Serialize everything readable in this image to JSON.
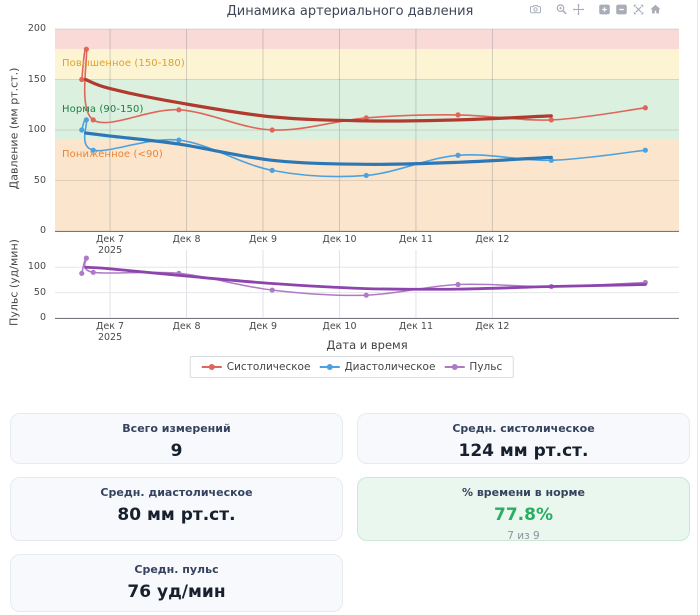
{
  "chart": {
    "title": "Динамика артериального давления",
    "modebar_icons": [
      "camera",
      "zoom",
      "pan",
      "zoom-in",
      "zoom-out",
      "autoscale",
      "home"
    ],
    "legend": [
      {
        "label": "Систолическое",
        "color": "#e0655b"
      },
      {
        "label": "Диастолическое",
        "color": "#4ea1dd"
      },
      {
        "label": "Пульс",
        "color": "#af7ac5"
      }
    ],
    "year_sublabel": "2025"
  },
  "chart_data": {
    "type": "line",
    "title": "Динамика артериального давления",
    "xlabel": "Дата и время",
    "x_unit": "day of December 2025 (decimal = time of day)",
    "xlim": [
      6.28,
      14.44
    ],
    "grid": true,
    "legend_position": "bottom-center",
    "xticks": [
      {
        "day": 7,
        "label": "Дек 7",
        "sublabel": "2025"
      },
      {
        "day": 8,
        "label": "Дек 8"
      },
      {
        "day": 9,
        "label": "Дек 9"
      },
      {
        "day": 10,
        "label": "Дек 10"
      },
      {
        "day": 11,
        "label": "Дек 11"
      },
      {
        "day": 12,
        "label": "Дек 12"
      }
    ],
    "subplots": [
      {
        "ylabel": "Давление (мм рт.ст.)",
        "ylim": [
          0,
          200
        ],
        "yticks": [
          0,
          50,
          100,
          150,
          200
        ],
        "zones": [
          {
            "from": 180,
            "to": 200,
            "fill": "#f9dad6",
            "label": "",
            "label_color": "",
            "label_at": 0
          },
          {
            "from": 150,
            "to": 180,
            "fill": "#fdf4d3",
            "label": "Повышенное (150-180)",
            "label_color": "#dba32c",
            "label_at": 165
          },
          {
            "from": 90,
            "to": 150,
            "fill": "#dcf0df",
            "label": "Норма (90-150)",
            "label_color": "#1e7e45",
            "label_at": 120
          },
          {
            "from": 0,
            "to": 90,
            "fill": "#fbe6cd",
            "label": "Пониженное (<90)",
            "label_color": "#ec8333",
            "label_at": 75
          }
        ],
        "series": [
          {
            "name": "Систолическое",
            "color": "#e0655b",
            "width": 1.6,
            "markers": true,
            "x": [
              6.63,
              6.69,
              6.78,
              7.9,
              9.12,
              10.35,
              11.55,
              12.77,
              14.0
            ],
            "values": [
              150,
              180,
              110,
              120,
              100,
              112,
              115,
              110,
              122
            ]
          },
          {
            "name": "Диастолическое",
            "color": "#4ea1dd",
            "width": 1.6,
            "markers": true,
            "x": [
              6.63,
              6.69,
              6.78,
              7.9,
              9.12,
              10.35,
              11.55,
              12.77,
              14.0
            ],
            "values": [
              100,
              110,
              80,
              90,
              60,
              55,
              75,
              70,
              80
            ]
          },
          {
            "name": "Систолическое (тренд)",
            "color": "#b03a2e",
            "width": 3.2,
            "markers": false,
            "x": [
              6.68,
              7.0,
              7.9,
              9.12,
              10.35,
              11.55,
              12.77
            ],
            "values": [
              150,
              141,
              127,
              113,
              109,
              110,
              114
            ]
          },
          {
            "name": "Диастолическое (тренд)",
            "color": "#2e77b5",
            "width": 3.2,
            "markers": false,
            "x": [
              6.68,
              7.0,
              7.9,
              9.12,
              10.35,
              11.55,
              12.77
            ],
            "values": [
              97,
              94,
              86,
              70,
              66,
              68,
              73
            ]
          }
        ]
      },
      {
        "ylabel": "Пульс (уд/мин)",
        "ylim": [
          0,
          134
        ],
        "yticks": [
          0,
          50,
          100
        ],
        "zones": [],
        "series": [
          {
            "name": "Пульс",
            "color": "#af7ac5",
            "width": 1.5,
            "markers": true,
            "x": [
              6.63,
              6.69,
              6.78,
              7.9,
              9.12,
              10.35,
              11.55,
              12.77,
              14.0
            ],
            "values": [
              88,
              118,
              90,
              88,
              55,
              45,
              66,
              62,
              70
            ]
          },
          {
            "name": "Пульс (тренд)",
            "color": "#8e44ad",
            "width": 2.8,
            "markers": false,
            "x": [
              6.68,
              7.0,
              7.9,
              9.12,
              10.35,
              11.55,
              12.77,
              14.0
            ],
            "values": [
              100,
              97,
              84,
              68,
              58,
              57,
              62,
              66
            ]
          }
        ]
      }
    ]
  },
  "stats": {
    "cards": [
      {
        "label": "Всего измерений",
        "value": "9",
        "variant": "default"
      },
      {
        "label": "Средн. систолическое",
        "value": "124 мм рт.ст.",
        "variant": "default"
      },
      {
        "label": "Средн. диастолическое",
        "value": "80 мм рт.ст.",
        "variant": "default"
      },
      {
        "label": "% времени в норме",
        "value": "77.8%",
        "sub": "7 из 9",
        "variant": "success"
      },
      {
        "label": "Средн. пульс",
        "value": "76 уд/мин",
        "variant": "default"
      }
    ],
    "success_color": "#27ae60"
  }
}
